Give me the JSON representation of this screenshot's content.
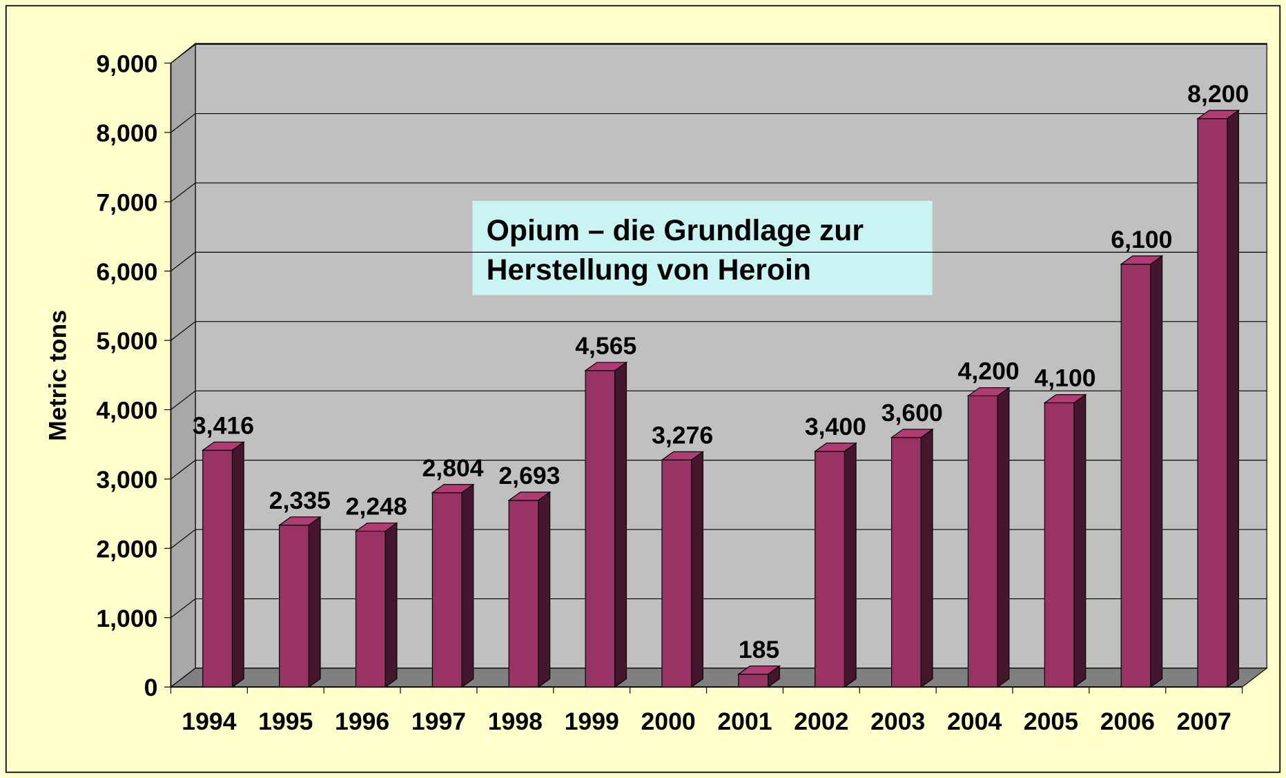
{
  "chart_data": {
    "type": "bar3d",
    "title": [
      "Opium – die Grundlage zur",
      "Herstellung von Heroin"
    ],
    "ylabel": "Metric tons",
    "categories": [
      "1994",
      "1995",
      "1996",
      "1997",
      "1998",
      "1999",
      "2000",
      "2001",
      "2002",
      "2003",
      "2004",
      "2005",
      "2006",
      "2007"
    ],
    "values": [
      3416,
      2335,
      2248,
      2804,
      2693,
      4565,
      3276,
      185,
      3400,
      3600,
      4200,
      4100,
      6100,
      8200
    ],
    "value_labels": [
      "3,416",
      "2,335",
      "2,248",
      "2,804",
      "2,693",
      "4,565",
      "3,276",
      "185",
      "3,400",
      "3,600",
      "4,200",
      "4,100",
      "6,100",
      "8,200"
    ],
    "color": "#993366",
    "ylim": [
      0,
      9000
    ],
    "yticks": [
      0,
      {
        "value": 1000,
        "label": "1,000"
      },
      {
        "value": 2000,
        "label": "2,000"
      },
      {
        "value": 3000,
        "label": "3,000"
      },
      {
        "value": 4000,
        "label": "4,000"
      },
      {
        "value": 5000,
        "label": "5,000"
      },
      {
        "value": 6000,
        "label": "6,000"
      },
      {
        "value": 7000,
        "label": "7,000"
      },
      {
        "value": 8000,
        "label": "8,000"
      },
      {
        "value": 9000,
        "label": "9,000"
      }
    ],
    "grid": true
  }
}
